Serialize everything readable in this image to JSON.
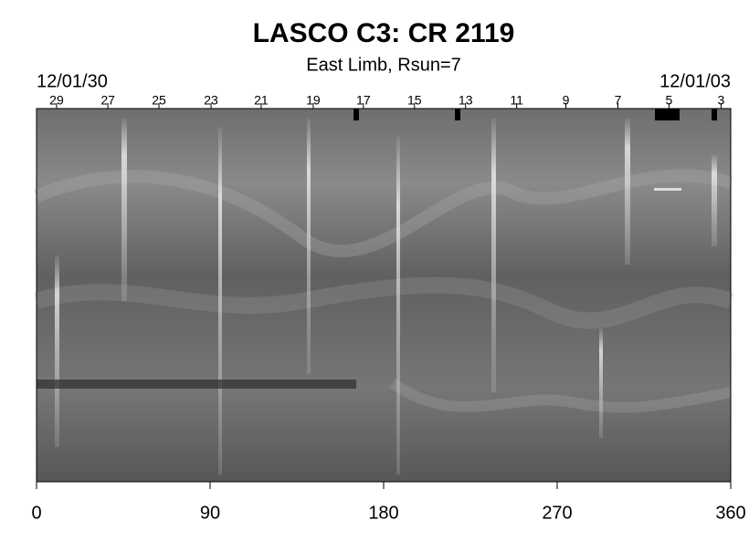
{
  "chart_data": {
    "type": "synoptic-map",
    "title": "LASCO C3: CR 2119",
    "subtitle": "East Limb, Rsun=7",
    "start_label": "12/01/30",
    "end_label": "12/01/03",
    "xlim": [
      0,
      360
    ],
    "xticks": [
      0,
      90,
      180,
      270,
      360
    ],
    "x2ticks": [
      {
        "value": 10.4,
        "label": "29"
      },
      {
        "value": 37,
        "label": "27"
      },
      {
        "value": 63.5,
        "label": "25"
      },
      {
        "value": 90.5,
        "label": "23"
      },
      {
        "value": 116.5,
        "label": "21"
      },
      {
        "value": 143.5,
        "label": "19"
      },
      {
        "value": 169.5,
        "label": "17"
      },
      {
        "value": 196,
        "label": "15"
      },
      {
        "value": 222.5,
        "label": "13"
      },
      {
        "value": 249,
        "label": "11"
      },
      {
        "value": 274.5,
        "label": "9"
      },
      {
        "value": 301.5,
        "label": "7"
      },
      {
        "value": 328,
        "label": "5"
      },
      {
        "value": 355,
        "label": "3"
      }
    ]
  }
}
